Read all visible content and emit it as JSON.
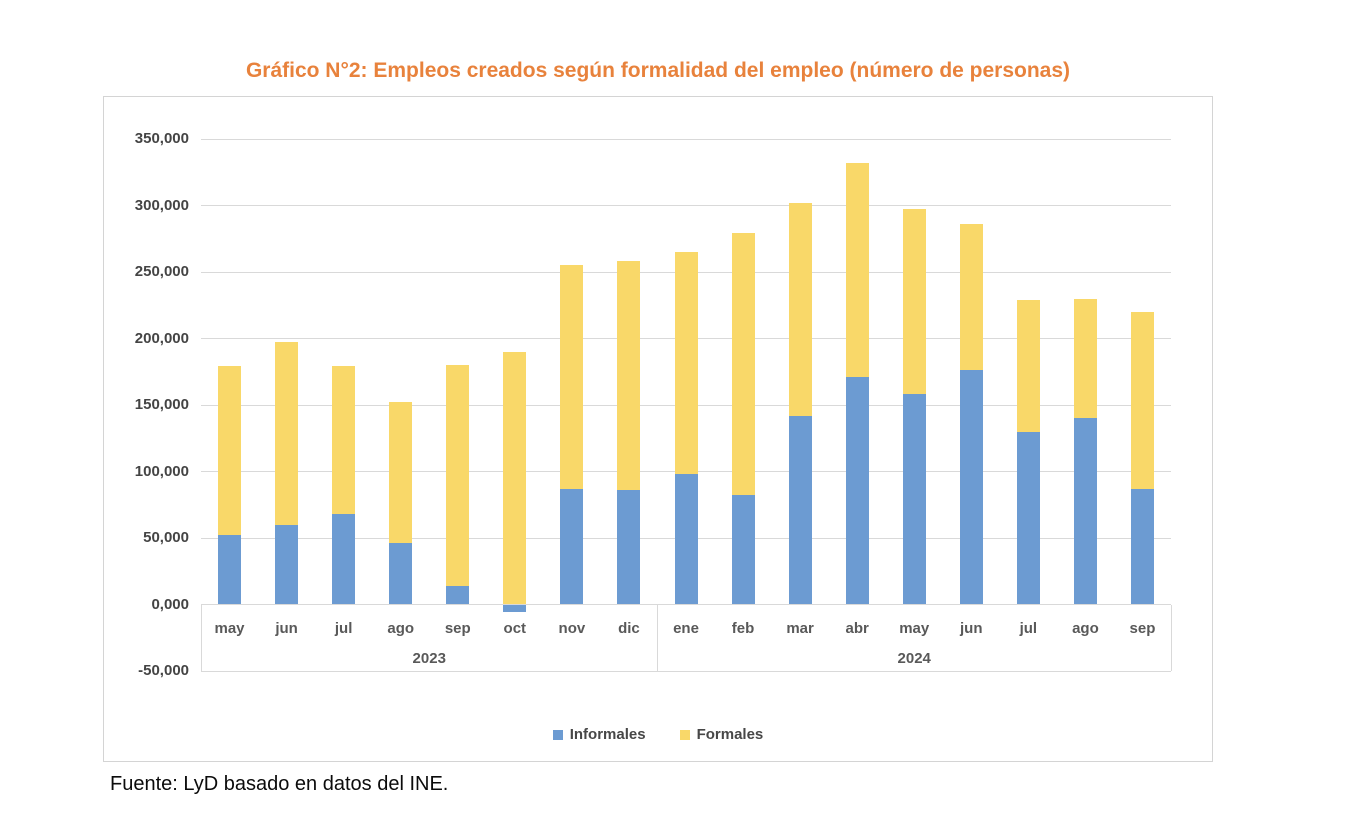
{
  "title": "Gráfico N°2: Empleos creados según formalidad del empleo (número de personas)",
  "source_note": "Fuente: LyD basado en datos del INE.",
  "colors": {
    "title": "#e8823c",
    "informal_bar": "#6c9bd2",
    "formal_bar": "#f9d869",
    "gridline": "#d9d9d9",
    "axis_text": "#595959",
    "y_axis_text": "#444444"
  },
  "chart_data": {
    "type": "bar",
    "stacked": true,
    "grid": true,
    "legend_position": "bottom",
    "title": "Gráfico N°2: Empleos creados según formalidad del empleo (número de personas)",
    "xlabel": "",
    "ylabel": "",
    "ylim": [
      -50000,
      350000
    ],
    "ytick_step": 50000,
    "categories": [
      "may",
      "jun",
      "jul",
      "ago",
      "sep",
      "oct",
      "nov",
      "dic",
      "ene",
      "feb",
      "mar",
      "abr",
      "may",
      "jun",
      "jul",
      "ago",
      "sep"
    ],
    "group_labels": [
      {
        "label": "2023",
        "span": 8
      },
      {
        "label": "2024",
        "span": 9
      }
    ],
    "series": [
      {
        "name": "Informales",
        "color": "#6c9bd2",
        "values": [
          52000,
          60000,
          68000,
          46000,
          14000,
          -6000,
          87000,
          86000,
          98000,
          82000,
          142000,
          171000,
          158000,
          176000,
          130000,
          140000,
          87000
        ]
      },
      {
        "name": "Formales",
        "color": "#f9d869",
        "values": [
          127000,
          137000,
          111000,
          106000,
          166000,
          190000,
          168000,
          172000,
          167000,
          197000,
          160000,
          161000,
          139000,
          110000,
          99000,
          90000,
          133000
        ]
      }
    ],
    "totals": [
      179000,
      197000,
      179000,
      152000,
      180000,
      184000,
      255000,
      258000,
      265000,
      279000,
      302000,
      332000,
      297000,
      286000,
      229000,
      230000,
      220000
    ],
    "y_axis": {
      "tick_labels": [
        "350,000",
        "300,000",
        "250,000",
        "200,000",
        "150,000",
        "100,000",
        "50,000",
        "0,000",
        "-50,000"
      ],
      "tick_values": [
        350000,
        300000,
        250000,
        200000,
        150000,
        100000,
        50000,
        0,
        -50000
      ]
    }
  }
}
